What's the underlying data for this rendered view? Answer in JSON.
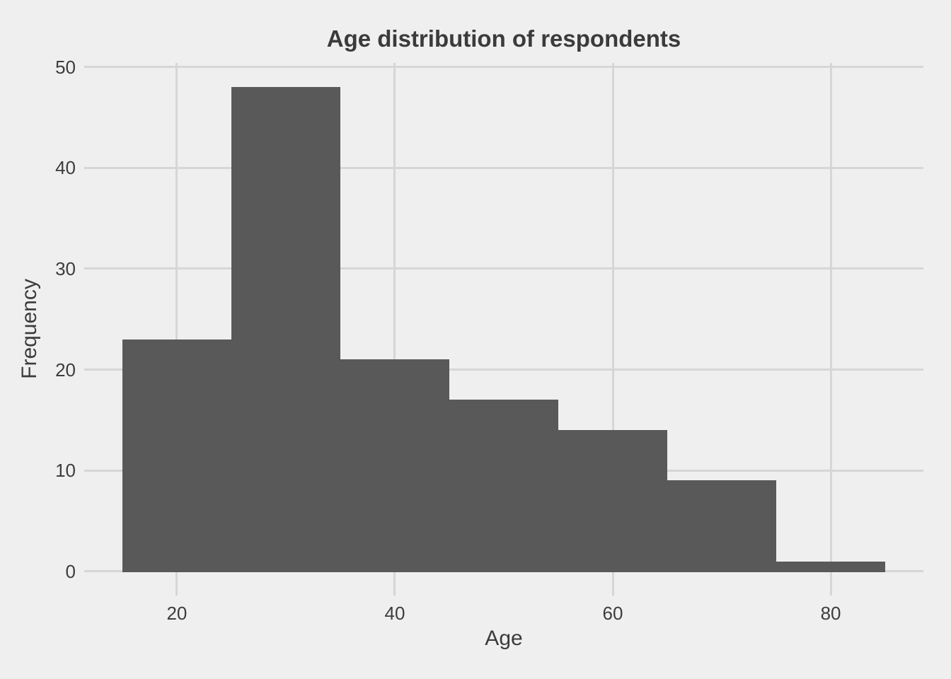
{
  "chart_data": {
    "type": "histogram",
    "title": "Age distribution of respondents",
    "xlabel": "Age",
    "ylabel": "Frequency",
    "bin_edges": [
      15,
      25,
      35,
      45,
      55,
      65,
      75,
      85
    ],
    "counts": [
      23,
      48,
      21,
      17,
      14,
      9,
      1
    ],
    "x_ticks": [
      20,
      40,
      60,
      80
    ],
    "y_ticks": [
      0,
      10,
      20,
      30,
      40,
      50
    ],
    "xlim": [
      11.5,
      88.5
    ],
    "ylim": [
      -2.4,
      50.4
    ],
    "grid": "major-only",
    "legend": "none",
    "colors": {
      "background": "#EFEFEF",
      "gridline": "#D6D6D6",
      "bar": "#595959",
      "text": "#3B3B3B"
    }
  }
}
